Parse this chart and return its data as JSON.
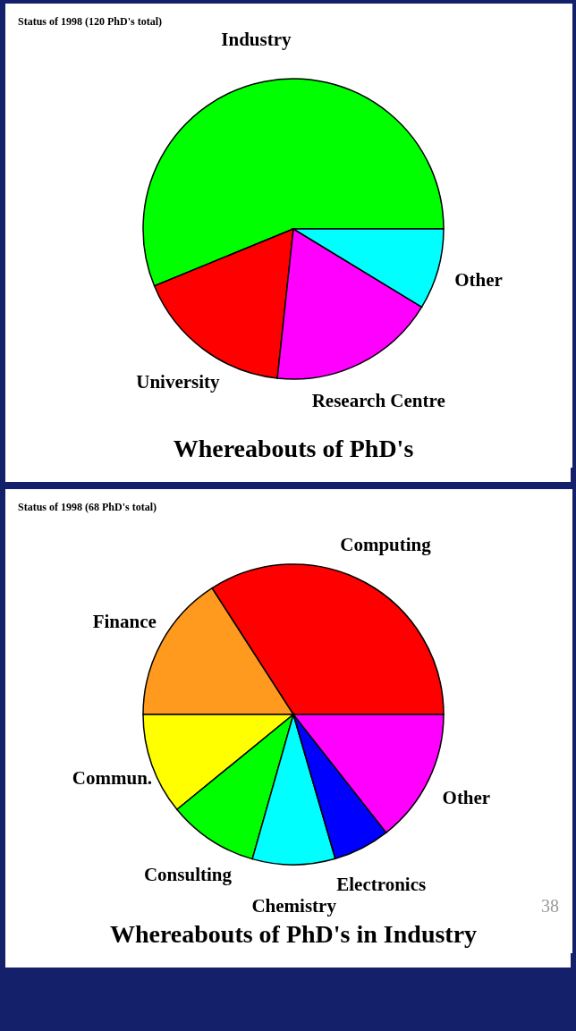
{
  "chart_data": [
    {
      "type": "pie",
      "title": "Whereabouts of PhD's",
      "subtitle": "Status of 1998  (120 PhD's total)",
      "categories": [
        "Industry",
        "University",
        "Research Centre",
        "Other"
      ],
      "values": [
        56.2,
        17.1,
        18.0,
        8.7
      ],
      "colors": [
        "#00ff00",
        "#ff0000",
        "#ff00ff",
        "#00ffff"
      ]
    },
    {
      "type": "pie",
      "title": "Whereabouts of PhD's in Industry",
      "subtitle": "Status of 1998  (68 PhD's total)",
      "categories": [
        "Computing",
        "Finance",
        "Commun.",
        "Consulting",
        "Chemistry",
        "Electronics",
        "Other"
      ],
      "values": [
        34.1,
        15.9,
        10.9,
        9.7,
        8.9,
        6.1,
        14.4
      ],
      "colors": [
        "#ff0000",
        "#ff9a1e",
        "#ffff00",
        "#00ff00",
        "#00ffff",
        "#0000ff",
        "#ff00ff"
      ],
      "annotations": [
        "38"
      ]
    }
  ]
}
